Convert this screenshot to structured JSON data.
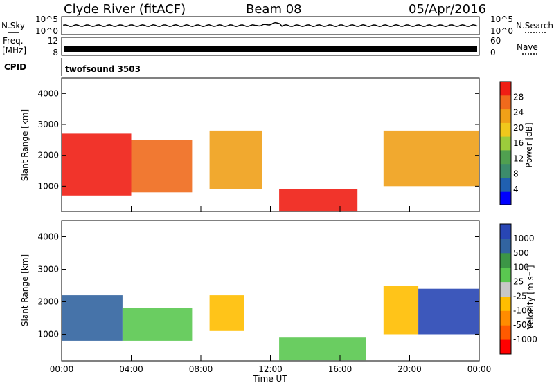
{
  "header": {
    "station": "Clyde River (fitACF)",
    "beam": "Beam 08",
    "date": "05/Apr/2016"
  },
  "strips": {
    "nsky_label": "N.Sky",
    "nsky_ticks": [
      "10^5",
      "10^0"
    ],
    "nsearch_label": "N.Search",
    "nsearch_ticks": [
      "10^5",
      "10^0"
    ],
    "freq_label_1": "Freq.",
    "freq_label_2": "[MHz]",
    "freq_ticks": [
      "12",
      "8"
    ],
    "nave_label": "Nave",
    "nave_ticks": [
      "60",
      "0"
    ],
    "cpid_label": "CPID",
    "cpid_value": "twofsound 3503"
  },
  "colors": {
    "power_scale": [
      "#0000ff",
      "#2060b0",
      "#3c8c6c",
      "#50a050",
      "#9ccc3c",
      "#f0c81c",
      "#f0a018",
      "#f06a1c",
      "#f01e14"
    ],
    "velocity_scale": [
      "#ff0000",
      "#ff5a00",
      "#ff8c00",
      "#ffbe00",
      "#c8c8c8",
      "#5ac850",
      "#3c9646",
      "#3264a0",
      "#2846b4"
    ],
    "ground_scatter": "#c8c8c8"
  },
  "chart_data": [
    {
      "type": "heatmap",
      "title": "Power",
      "xlabel": "Time UT",
      "ylabel": "Slant Range [km]",
      "x_ticks": [
        "00:00",
        "04:00",
        "08:00",
        "12:00",
        "16:00",
        "20:00",
        "00:00"
      ],
      "xlim": [
        0,
        24
      ],
      "ylim": [
        180,
        4500
      ],
      "y_ticks": [
        "1000",
        "2000",
        "3000",
        "4000"
      ],
      "colorbar": {
        "label": "Power [dB]",
        "ticks": [
          "4",
          "8",
          "12",
          "16",
          "20",
          "24",
          "28"
        ],
        "range": [
          0,
          30
        ]
      },
      "series": [
        {
          "name": "",
          "t_start": 0.0,
          "t_end": 4.0,
          "range_low": 700,
          "range_high": 2700,
          "value": 28
        },
        {
          "name": "",
          "t_start": 4.0,
          "t_end": 7.5,
          "range_low": 800,
          "range_high": 2500,
          "value": 26
        },
        {
          "name": "",
          "t_start": 8.5,
          "t_end": 11.5,
          "range_low": 900,
          "range_high": 2800,
          "value": 20
        },
        {
          "name": "",
          "t_start": 12.5,
          "t_end": 17.0,
          "range_low": 200,
          "range_high": 900,
          "value": 28
        },
        {
          "name": "",
          "t_start": 18.5,
          "t_end": 24.0,
          "range_low": 1000,
          "range_high": 2800,
          "value": 20
        }
      ]
    },
    {
      "type": "heatmap",
      "title": "Velocity",
      "xlabel": "Time UT",
      "ylabel": "Slant Range [km]",
      "x_ticks": [
        "00:00",
        "04:00",
        "08:00",
        "12:00",
        "16:00",
        "20:00",
        "00:00"
      ],
      "xlim": [
        0,
        24
      ],
      "ylim": [
        180,
        4500
      ],
      "y_ticks": [
        "1000",
        "2000",
        "3000",
        "4000"
      ],
      "colorbar": {
        "label": "Velocity [m s⁻¹]",
        "ticks": [
          "-1000",
          "-500",
          "-100",
          "-25",
          "25",
          "100",
          "500",
          "1000"
        ],
        "range": [
          -1000,
          1000
        ]
      },
      "series": [
        {
          "name": "",
          "t_start": 0.0,
          "t_end": 3.5,
          "range_low": 800,
          "range_high": 2200,
          "value": 700
        },
        {
          "name": "",
          "t_start": 3.5,
          "t_end": 7.5,
          "range_low": 800,
          "range_high": 1800,
          "value": 200
        },
        {
          "name": "",
          "t_start": 8.5,
          "t_end": 10.5,
          "range_low": 1100,
          "range_high": 2200,
          "value": -300
        },
        {
          "name": "",
          "t_start": 12.5,
          "t_end": 17.5,
          "range_low": 200,
          "range_high": 900,
          "value": 150
        },
        {
          "name": "",
          "t_start": 18.5,
          "t_end": 20.5,
          "range_low": 1000,
          "range_high": 2500,
          "value": -300
        },
        {
          "name": "",
          "t_start": 20.5,
          "t_end": 24.0,
          "range_low": 1000,
          "range_high": 2400,
          "value": 800
        }
      ]
    }
  ]
}
